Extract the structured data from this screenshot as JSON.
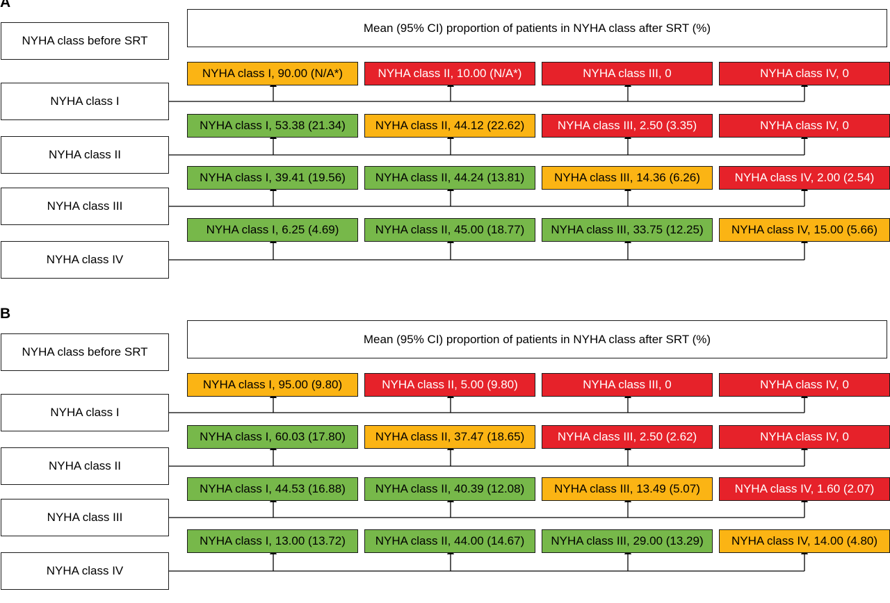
{
  "panels": [
    {
      "letter": "A",
      "header": "Mean (95% CI) proportion of patients in NYHA class after SRT (%)",
      "before_label": "NYHA class before SRT",
      "rows": [
        {
          "label": "NYHA class I",
          "cells": [
            {
              "text": "NYHA class I, 90.00 (N/A*)",
              "color": "yellow"
            },
            {
              "text": "NYHA class II, 10.00 (N/A*)",
              "color": "red"
            },
            {
              "text": "NYHA class III, 0",
              "color": "red"
            },
            {
              "text": "NYHA class IV, 0",
              "color": "red"
            }
          ]
        },
        {
          "label": "NYHA class II",
          "cells": [
            {
              "text": "NYHA class I, 53.38 (21.34)",
              "color": "green"
            },
            {
              "text": "NYHA class II, 44.12 (22.62)",
              "color": "yellow"
            },
            {
              "text": "NYHA class III, 2.50 (3.35)",
              "color": "red"
            },
            {
              "text": "NYHA class IV, 0",
              "color": "red"
            }
          ]
        },
        {
          "label": "NYHA class III",
          "cells": [
            {
              "text": "NYHA class I, 39.41 (19.56)",
              "color": "green"
            },
            {
              "text": "NYHA class II, 44.24 (13.81)",
              "color": "green"
            },
            {
              "text": "NYHA class III, 14.36 (6.26)",
              "color": "yellow"
            },
            {
              "text": "NYHA class IV, 2.00 (2.54)",
              "color": "red"
            }
          ]
        },
        {
          "label": "NYHA class IV",
          "cells": [
            {
              "text": "NYHA class I, 6.25 (4.69)",
              "color": "green"
            },
            {
              "text": "NYHA class II, 45.00 (18.77)",
              "color": "green"
            },
            {
              "text": "NYHA class III, 33.75 (12.25)",
              "color": "green"
            },
            {
              "text": "NYHA class IV, 15.00 (5.66)",
              "color": "yellow"
            }
          ]
        }
      ]
    },
    {
      "letter": "B",
      "header": "Mean (95% CI) proportion of patients in NYHA class after SRT (%)",
      "before_label": "NYHA class before SRT",
      "rows": [
        {
          "label": "NYHA class I",
          "cells": [
            {
              "text": "NYHA class I, 95.00 (9.80)",
              "color": "yellow"
            },
            {
              "text": "NYHA class II, 5.00 (9.80)",
              "color": "red"
            },
            {
              "text": "NYHA class III, 0",
              "color": "red"
            },
            {
              "text": "NYHA class IV, 0",
              "color": "red"
            }
          ]
        },
        {
          "label": "NYHA class II",
          "cells": [
            {
              "text": "NYHA class I, 60.03 (17.80)",
              "color": "green"
            },
            {
              "text": "NYHA class II, 37.47 (18.65)",
              "color": "yellow"
            },
            {
              "text": "NYHA class III, 2.50 (2.62)",
              "color": "red"
            },
            {
              "text": "NYHA class IV, 0",
              "color": "red"
            }
          ]
        },
        {
          "label": "NYHA class III",
          "cells": [
            {
              "text": "NYHA class I, 44.53 (16.88)",
              "color": "green"
            },
            {
              "text": "NYHA class II, 40.39 (12.08)",
              "color": "green"
            },
            {
              "text": "NYHA class III, 13.49 (5.07)",
              "color": "yellow"
            },
            {
              "text": "NYHA class IV, 1.60 (2.07)",
              "color": "red"
            }
          ]
        },
        {
          "label": "NYHA class IV",
          "cells": [
            {
              "text": "NYHA class I, 13.00 (13.72)",
              "color": "green"
            },
            {
              "text": "NYHA class II, 44.00 (14.67)",
              "color": "green"
            },
            {
              "text": "NYHA class III, 29.00 (13.29)",
              "color": "green"
            },
            {
              "text": "NYHA class IV, 14.00 (4.80)",
              "color": "yellow"
            }
          ]
        }
      ]
    }
  ]
}
